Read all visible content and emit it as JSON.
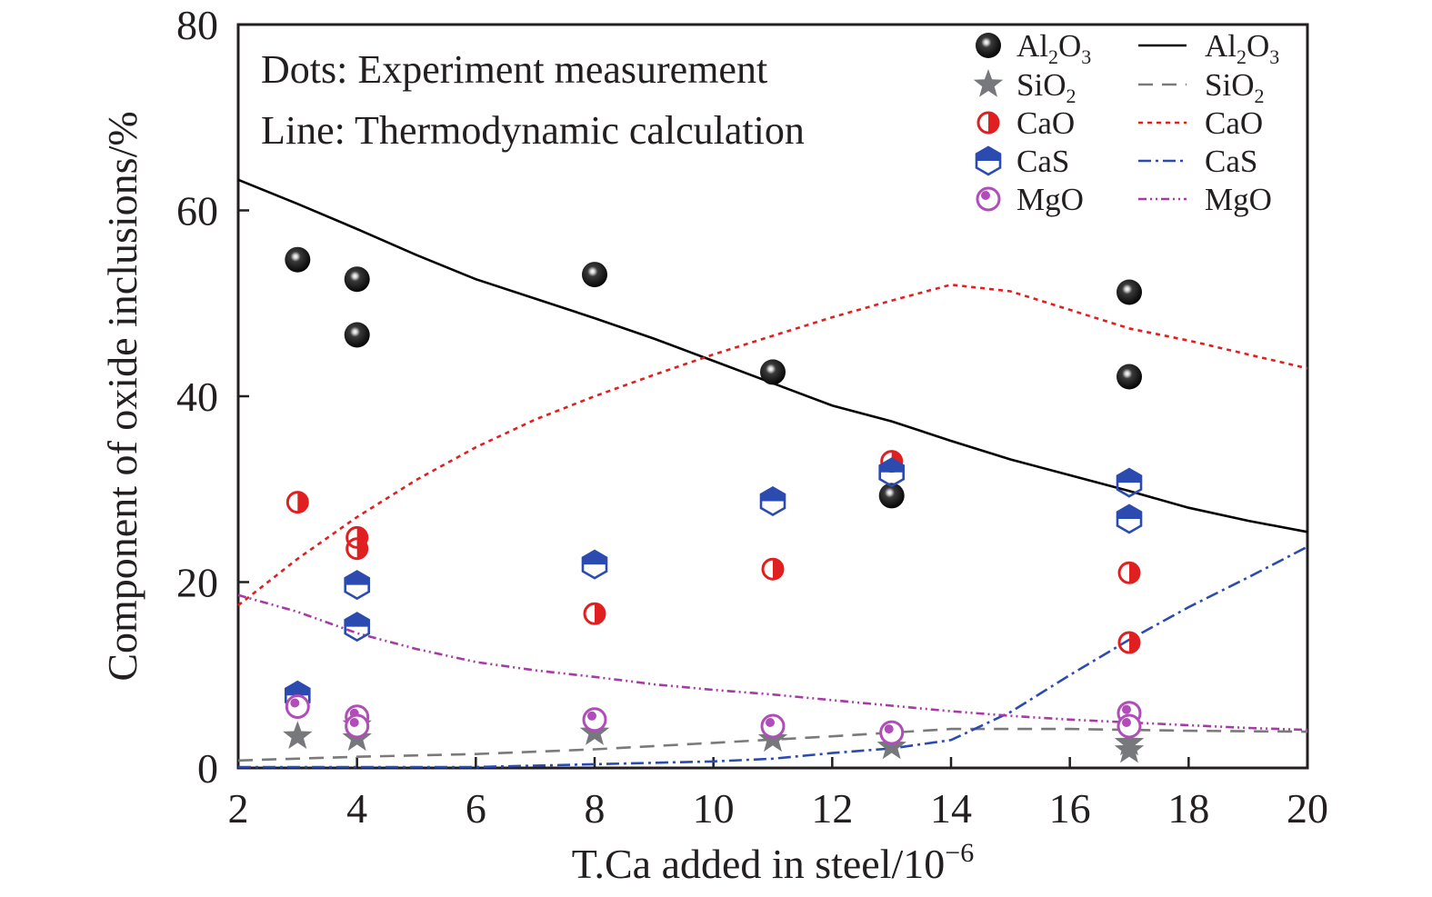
{
  "chart_data": {
    "type": "scatter",
    "xlabel": "T.Ca added in steel/10",
    "xlabel_sup": "−6",
    "ylabel": "Component of oxide inclusions/%",
    "xlim": [
      2,
      20
    ],
    "ylim": [
      0,
      80
    ],
    "xticks": [
      "2",
      "4",
      "6",
      "8",
      "10",
      "12",
      "14",
      "16",
      "18",
      "20"
    ],
    "yticks": [
      "0",
      "20",
      "40",
      "60",
      "80"
    ],
    "notes": [
      "Dots: Experiment measurement",
      "Line: Thermodynamic calculation"
    ],
    "legend_position": "top-right",
    "experiment_series": [
      {
        "name": "Al2O3",
        "label": "Al",
        "sub1": "2",
        "mid": "O",
        "sub2": "3",
        "marker": "sphere",
        "color": "#1a1a1a",
        "points": [
          [
            3,
            54.7
          ],
          [
            4,
            52.6
          ],
          [
            4,
            46.6
          ],
          [
            8,
            53.1
          ],
          [
            11,
            42.6
          ],
          [
            13,
            29.3
          ],
          [
            17,
            51.2
          ],
          [
            17,
            42.1
          ]
        ]
      },
      {
        "name": "SiO2",
        "label": "SiO",
        "sub1": "2",
        "mid": "",
        "sub2": "",
        "marker": "star",
        "color": "#77787b",
        "points": [
          [
            3,
            3.4
          ],
          [
            4,
            4.6
          ],
          [
            4,
            3.2
          ],
          [
            8,
            3.8
          ],
          [
            11,
            3.1
          ],
          [
            13,
            2.3
          ],
          [
            17,
            2.7
          ],
          [
            17,
            1.9
          ]
        ]
      },
      {
        "name": "CaO",
        "label": "CaO",
        "sub1": "",
        "mid": "",
        "sub2": "",
        "marker": "half-circle",
        "color": "#e02020",
        "points": [
          [
            3,
            28.6
          ],
          [
            4,
            24.8
          ],
          [
            4,
            23.6
          ],
          [
            8,
            16.6
          ],
          [
            11,
            21.4
          ],
          [
            13,
            33.0
          ],
          [
            17,
            21.0
          ],
          [
            17,
            13.5
          ]
        ]
      },
      {
        "name": "CaS",
        "label": "CaS",
        "sub1": "",
        "mid": "",
        "sub2": "",
        "marker": "half-hexagon",
        "color": "#2b4bb0",
        "points": [
          [
            3,
            7.8
          ],
          [
            4,
            19.7
          ],
          [
            4,
            15.2
          ],
          [
            8,
            21.9
          ],
          [
            11,
            28.7
          ],
          [
            13,
            31.8
          ],
          [
            17,
            30.7
          ],
          [
            17,
            26.8
          ]
        ]
      },
      {
        "name": "MgO",
        "label": "MgO",
        "sub1": "",
        "mid": "",
        "sub2": "",
        "marker": "bubble",
        "color": "#b04db8",
        "points": [
          [
            3,
            6.6
          ],
          [
            4,
            5.5
          ],
          [
            4,
            4.5
          ],
          [
            8,
            5.2
          ],
          [
            11,
            4.5
          ],
          [
            13,
            3.8
          ],
          [
            17,
            5.9
          ],
          [
            17,
            4.5
          ]
        ]
      }
    ],
    "calculation_series": [
      {
        "name": "Al2O3",
        "label": "Al",
        "sub1": "2",
        "mid": "O",
        "sub2": "3",
        "color": "#000000",
        "dash": "",
        "x": [
          2,
          3,
          4,
          5,
          6,
          7,
          8,
          9,
          10,
          11,
          12,
          13,
          14,
          15,
          16,
          17,
          18,
          19,
          20
        ],
        "y": [
          63.3,
          60.7,
          58.0,
          55.2,
          52.6,
          50.5,
          48.4,
          46.2,
          43.8,
          41.4,
          39.0,
          37.3,
          35.2,
          33.2,
          31.5,
          29.8,
          28.0,
          26.6,
          25.4
        ]
      },
      {
        "name": "SiO2",
        "label": "SiO",
        "sub1": "2",
        "mid": "",
        "sub2": "",
        "color": "#7a7a7a",
        "dash": "16 10",
        "x": [
          2,
          4,
          6,
          8,
          10,
          12,
          14,
          16,
          18,
          20
        ],
        "y": [
          0.8,
          1.2,
          1.5,
          2.0,
          2.7,
          3.4,
          4.2,
          4.2,
          4.0,
          3.9
        ]
      },
      {
        "name": "CaO",
        "label": "CaO",
        "sub1": "",
        "mid": "",
        "sub2": "",
        "color": "#e02020",
        "dash": "5 5",
        "x": [
          2,
          3,
          4,
          5,
          6,
          7,
          8,
          9,
          10,
          11,
          12,
          13,
          14,
          15,
          16,
          17,
          18,
          19,
          20
        ],
        "y": [
          17.5,
          22.5,
          27.0,
          31.0,
          34.5,
          37.5,
          40.0,
          42.3,
          44.5,
          46.5,
          48.5,
          50.3,
          52.0,
          51.3,
          49.3,
          47.3,
          46.0,
          44.5,
          43.0
        ]
      },
      {
        "name": "CaS",
        "label": "CaS",
        "sub1": "",
        "mid": "",
        "sub2": "",
        "color": "#2b4bb0",
        "dash": "14 5 3 5",
        "x": [
          2,
          4,
          6,
          8,
          10,
          11,
          12,
          13,
          14,
          15,
          16,
          17,
          18,
          19,
          20
        ],
        "y": [
          0.1,
          0.1,
          0.1,
          0.4,
          0.7,
          1.0,
          1.6,
          2.1,
          3.0,
          6.0,
          10.0,
          13.8,
          17.3,
          20.5,
          23.8
        ]
      },
      {
        "name": "MgO",
        "label": "MgO",
        "sub1": "",
        "mid": "",
        "sub2": "",
        "color": "#a83aa8",
        "dash": "9 4 2 4 2 4",
        "x": [
          2,
          3,
          4,
          5,
          6,
          7,
          8,
          9,
          10,
          11,
          12,
          13,
          14,
          15,
          16,
          17,
          18,
          19,
          20
        ],
        "y": [
          18.6,
          16.8,
          14.5,
          12.8,
          11.4,
          10.5,
          9.8,
          9.0,
          8.4,
          7.9,
          7.3,
          6.7,
          6.1,
          5.6,
          5.2,
          4.9,
          4.6,
          4.3,
          4.1
        ]
      }
    ]
  }
}
